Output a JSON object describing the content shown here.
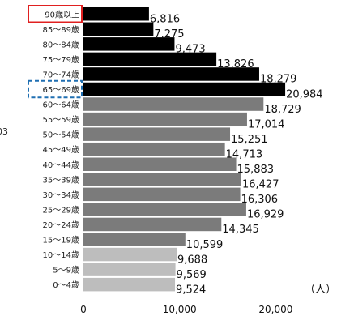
{
  "chart_data": {
    "type": "bar",
    "orientation": "horizontal",
    "categories": [
      "90歳以上",
      "85～89歳",
      "80～84歳",
      "75～79歳",
      "70～74歳",
      "65～69歳",
      "60～64歳",
      "55～59歳",
      "50～54歳",
      "45～49歳",
      "40～44歳",
      "35～39歳",
      "30～34歳",
      "25～29歳",
      "20～24歳",
      "15～19歳",
      "10～14歳",
      "5～9歳",
      "0～4歳"
    ],
    "values": [
      6816,
      7275,
      9473,
      13826,
      18279,
      20984,
      18729,
      17014,
      15251,
      14713,
      15883,
      16427,
      16306,
      16929,
      14345,
      10599,
      9688,
      9569,
      9524
    ],
    "value_labels": [
      "6,816",
      "7,275",
      "9,473",
      "13,826",
      "18,279",
      "20,984",
      "18,729",
      "17,014",
      "15,251",
      "14,713",
      "15,883",
      "16,427",
      "16,306",
      "16,929",
      "14,345",
      "10,599",
      "9,688",
      "9,569",
      "9,524"
    ],
    "group_colors": [
      "#000000",
      "#000000",
      "#000000",
      "#000000",
      "#000000",
      "#000000",
      "#7b7b7b",
      "#7b7b7b",
      "#7b7b7b",
      "#7b7b7b",
      "#7b7b7b",
      "#7b7b7b",
      "#7b7b7b",
      "#7b7b7b",
      "#7b7b7b",
      "#7b7b7b",
      "#bdbdbd",
      "#bdbdbd",
      "#bdbdbd"
    ],
    "highlight": {
      "solid_red_box": "90歳以上",
      "dashed_blue_box": "65～69歳",
      "red": "#e02020",
      "blue": "#1f6fb2"
    },
    "xlim": [
      0,
      23000
    ],
    "xticks": [
      0,
      10000,
      20000
    ],
    "xtick_labels": [
      "0",
      "10,000",
      "20,000"
    ],
    "unit_label": "（人）",
    "left_edge_text": "03",
    "grid": false
  }
}
